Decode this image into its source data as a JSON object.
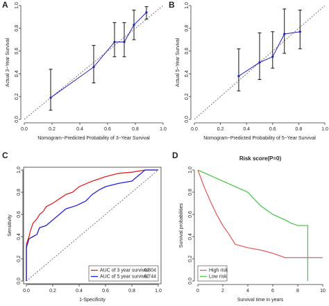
{
  "chart_data": [
    {
      "type": "scatter",
      "panel": "A",
      "x_label": "Nomogram−Predicted Probability of 3−Year Survival",
      "y_label": "Actual 3−Year Survival",
      "x": [
        0.19,
        0.5,
        0.65,
        0.72,
        0.79,
        0.88
      ],
      "series": [
        {
          "color": "#1f1fbf",
          "values": [
            0.19,
            0.46,
            0.68,
            0.68,
            0.83,
            0.94
          ],
          "lower": [
            0.08,
            0.32,
            0.55,
            0.55,
            0.7,
            0.88
          ],
          "upper": [
            0.44,
            0.65,
            0.85,
            0.85,
            0.96,
            0.99
          ]
        }
      ],
      "xlim": [
        0,
        1
      ],
      "ylim": [
        0,
        1
      ],
      "xticks": [
        {
          "value": 0,
          "label": "0.0"
        },
        0.2,
        0.4,
        0.6,
        0.8,
        {
          "value": 1,
          "label": "1.0"
        }
      ],
      "yticks": [
        {
          "value": 0,
          "label": "0.0"
        },
        0.2,
        0.4,
        0.6,
        0.8,
        {
          "value": 1,
          "label": "1.0"
        }
      ],
      "diagonal": true
    },
    {
      "type": "scatter",
      "panel": "B",
      "x_label": "Nomogram−Predicted Probability of 5−Year Survival",
      "y_label": "Actual 5−Year Survival",
      "x": [
        0.34,
        0.5,
        0.6,
        0.69,
        0.81
      ],
      "series": [
        {
          "color": "#1f1fbf",
          "values": [
            0.38,
            0.5,
            0.55,
            0.75,
            0.77
          ],
          "lower": [
            0.25,
            0.35,
            0.45,
            0.58,
            0.62
          ],
          "upper": [
            0.62,
            0.76,
            0.77,
            0.97,
            0.96
          ]
        }
      ],
      "xlim": [
        0,
        1
      ],
      "ylim": [
        0,
        1
      ],
      "xticks": [
        {
          "value": 0,
          "label": "0.0"
        },
        0.2,
        0.4,
        0.6,
        0.8,
        {
          "value": 1,
          "label": "1.0"
        }
      ],
      "yticks": [
        {
          "value": 0,
          "label": "0.0"
        },
        0.2,
        0.4,
        0.6,
        0.8,
        {
          "value": 1,
          "label": "1.0"
        }
      ],
      "diagonal": true
    },
    {
      "type": "line",
      "panel": "C",
      "x_label": "1-Specificity",
      "y_label": "Sensitivity",
      "series": [
        {
          "name": "AUC of 3 year survival:",
          "auc": 0.804,
          "color": "#e02020",
          "x": [
            0,
            0,
            0.02,
            0.03,
            0.05,
            0.08,
            0.1,
            0.13,
            0.15,
            0.2,
            0.25,
            0.3,
            0.35,
            0.4,
            0.5,
            0.6,
            0.7,
            0.8,
            0.9,
            1
          ],
          "values": [
            0,
            0.33,
            0.4,
            0.45,
            0.52,
            0.56,
            0.6,
            0.63,
            0.67,
            0.7,
            0.74,
            0.78,
            0.8,
            0.85,
            0.9,
            0.94,
            0.97,
            0.98,
            1,
            1
          ]
        },
        {
          "name": "AUC of 5 year survival:",
          "auc": 0.744,
          "color": "#2020d0",
          "x": [
            0,
            0,
            0.02,
            0.05,
            0.08,
            0.1,
            0.15,
            0.2,
            0.25,
            0.3,
            0.38,
            0.45,
            0.5,
            0.55,
            0.6,
            0.7,
            0.8,
            0.85,
            0.9,
            1
          ],
          "values": [
            0,
            0.3,
            0.38,
            0.4,
            0.42,
            0.48,
            0.5,
            0.55,
            0.6,
            0.65,
            0.68,
            0.72,
            0.78,
            0.82,
            0.85,
            0.88,
            0.9,
            0.95,
            1,
            1
          ]
        }
      ],
      "xlim": [
        0,
        1
      ],
      "ylim": [
        0,
        1
      ],
      "xticks": [
        {
          "value": 0,
          "label": "0.0"
        },
        0.2,
        0.4,
        0.6,
        0.8,
        {
          "value": 1,
          "label": "1.0"
        }
      ],
      "yticks": [
        {
          "value": 0,
          "label": "0.0"
        },
        0.2,
        0.4,
        0.6,
        0.8,
        {
          "value": 1,
          "label": "1.0"
        }
      ],
      "diagonal": true,
      "legend": "bottom-right"
    },
    {
      "type": "line",
      "panel": "D",
      "title": "Risk score(P=0)",
      "x_label": "Survival time in years",
      "y_label": "Survival probabilities",
      "series": [
        {
          "name": "High risk",
          "color": "#e06060",
          "x": [
            0,
            0.5,
            1,
            1.5,
            2,
            2.5,
            3,
            4,
            5,
            6,
            7,
            8,
            10
          ],
          "values": [
            1,
            0.85,
            0.72,
            0.6,
            0.5,
            0.42,
            0.33,
            0.3,
            0.28,
            0.25,
            0.21,
            0.21,
            0.21
          ]
        },
        {
          "name": "Low risk",
          "color": "#50c850",
          "x": [
            0,
            1,
            2,
            3,
            4,
            5,
            6,
            7,
            7.5,
            8,
            8.5,
            8.8,
            8.8
          ],
          "values": [
            1,
            0.95,
            0.9,
            0.85,
            0.8,
            0.68,
            0.6,
            0.55,
            0.52,
            0.5,
            0.5,
            0.5,
            0
          ]
        }
      ],
      "xlim": [
        0,
        10
      ],
      "ylim": [
        0,
        1
      ],
      "xticks": [
        0,
        2,
        4,
        6,
        8,
        10
      ],
      "yticks": [
        {
          "value": 0,
          "label": "0.0"
        },
        0.2,
        0.4,
        0.6,
        0.8,
        {
          "value": 1,
          "label": "1.0"
        }
      ],
      "diagonal": false,
      "legend": "bottom-left"
    }
  ]
}
